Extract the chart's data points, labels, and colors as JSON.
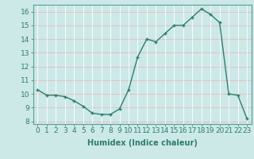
{
  "x": [
    0,
    1,
    2,
    3,
    4,
    5,
    6,
    7,
    8,
    9,
    10,
    11,
    12,
    13,
    14,
    15,
    16,
    17,
    18,
    19,
    20,
    21,
    22,
    23
  ],
  "y": [
    10.3,
    9.9,
    9.9,
    9.8,
    9.5,
    9.1,
    8.6,
    8.5,
    8.5,
    8.9,
    10.3,
    12.7,
    14.0,
    13.8,
    14.4,
    15.0,
    15.0,
    15.6,
    16.2,
    15.8,
    15.2,
    10.0,
    9.9,
    8.2
  ],
  "line_color": "#2e7d6e",
  "bg_color": "#cce9e8",
  "grid_color_h": "#e8b8b8",
  "grid_color_v": "#ffffff",
  "xlabel": "Humidex (Indice chaleur)",
  "xlim": [
    -0.5,
    23.5
  ],
  "ylim": [
    7.8,
    16.5
  ],
  "yticks": [
    8,
    9,
    10,
    11,
    12,
    13,
    14,
    15,
    16
  ],
  "xticks": [
    0,
    1,
    2,
    3,
    4,
    5,
    6,
    7,
    8,
    9,
    10,
    11,
    12,
    13,
    14,
    15,
    16,
    17,
    18,
    19,
    20,
    21,
    22,
    23
  ],
  "label_fontsize": 7,
  "tick_fontsize": 6.5
}
